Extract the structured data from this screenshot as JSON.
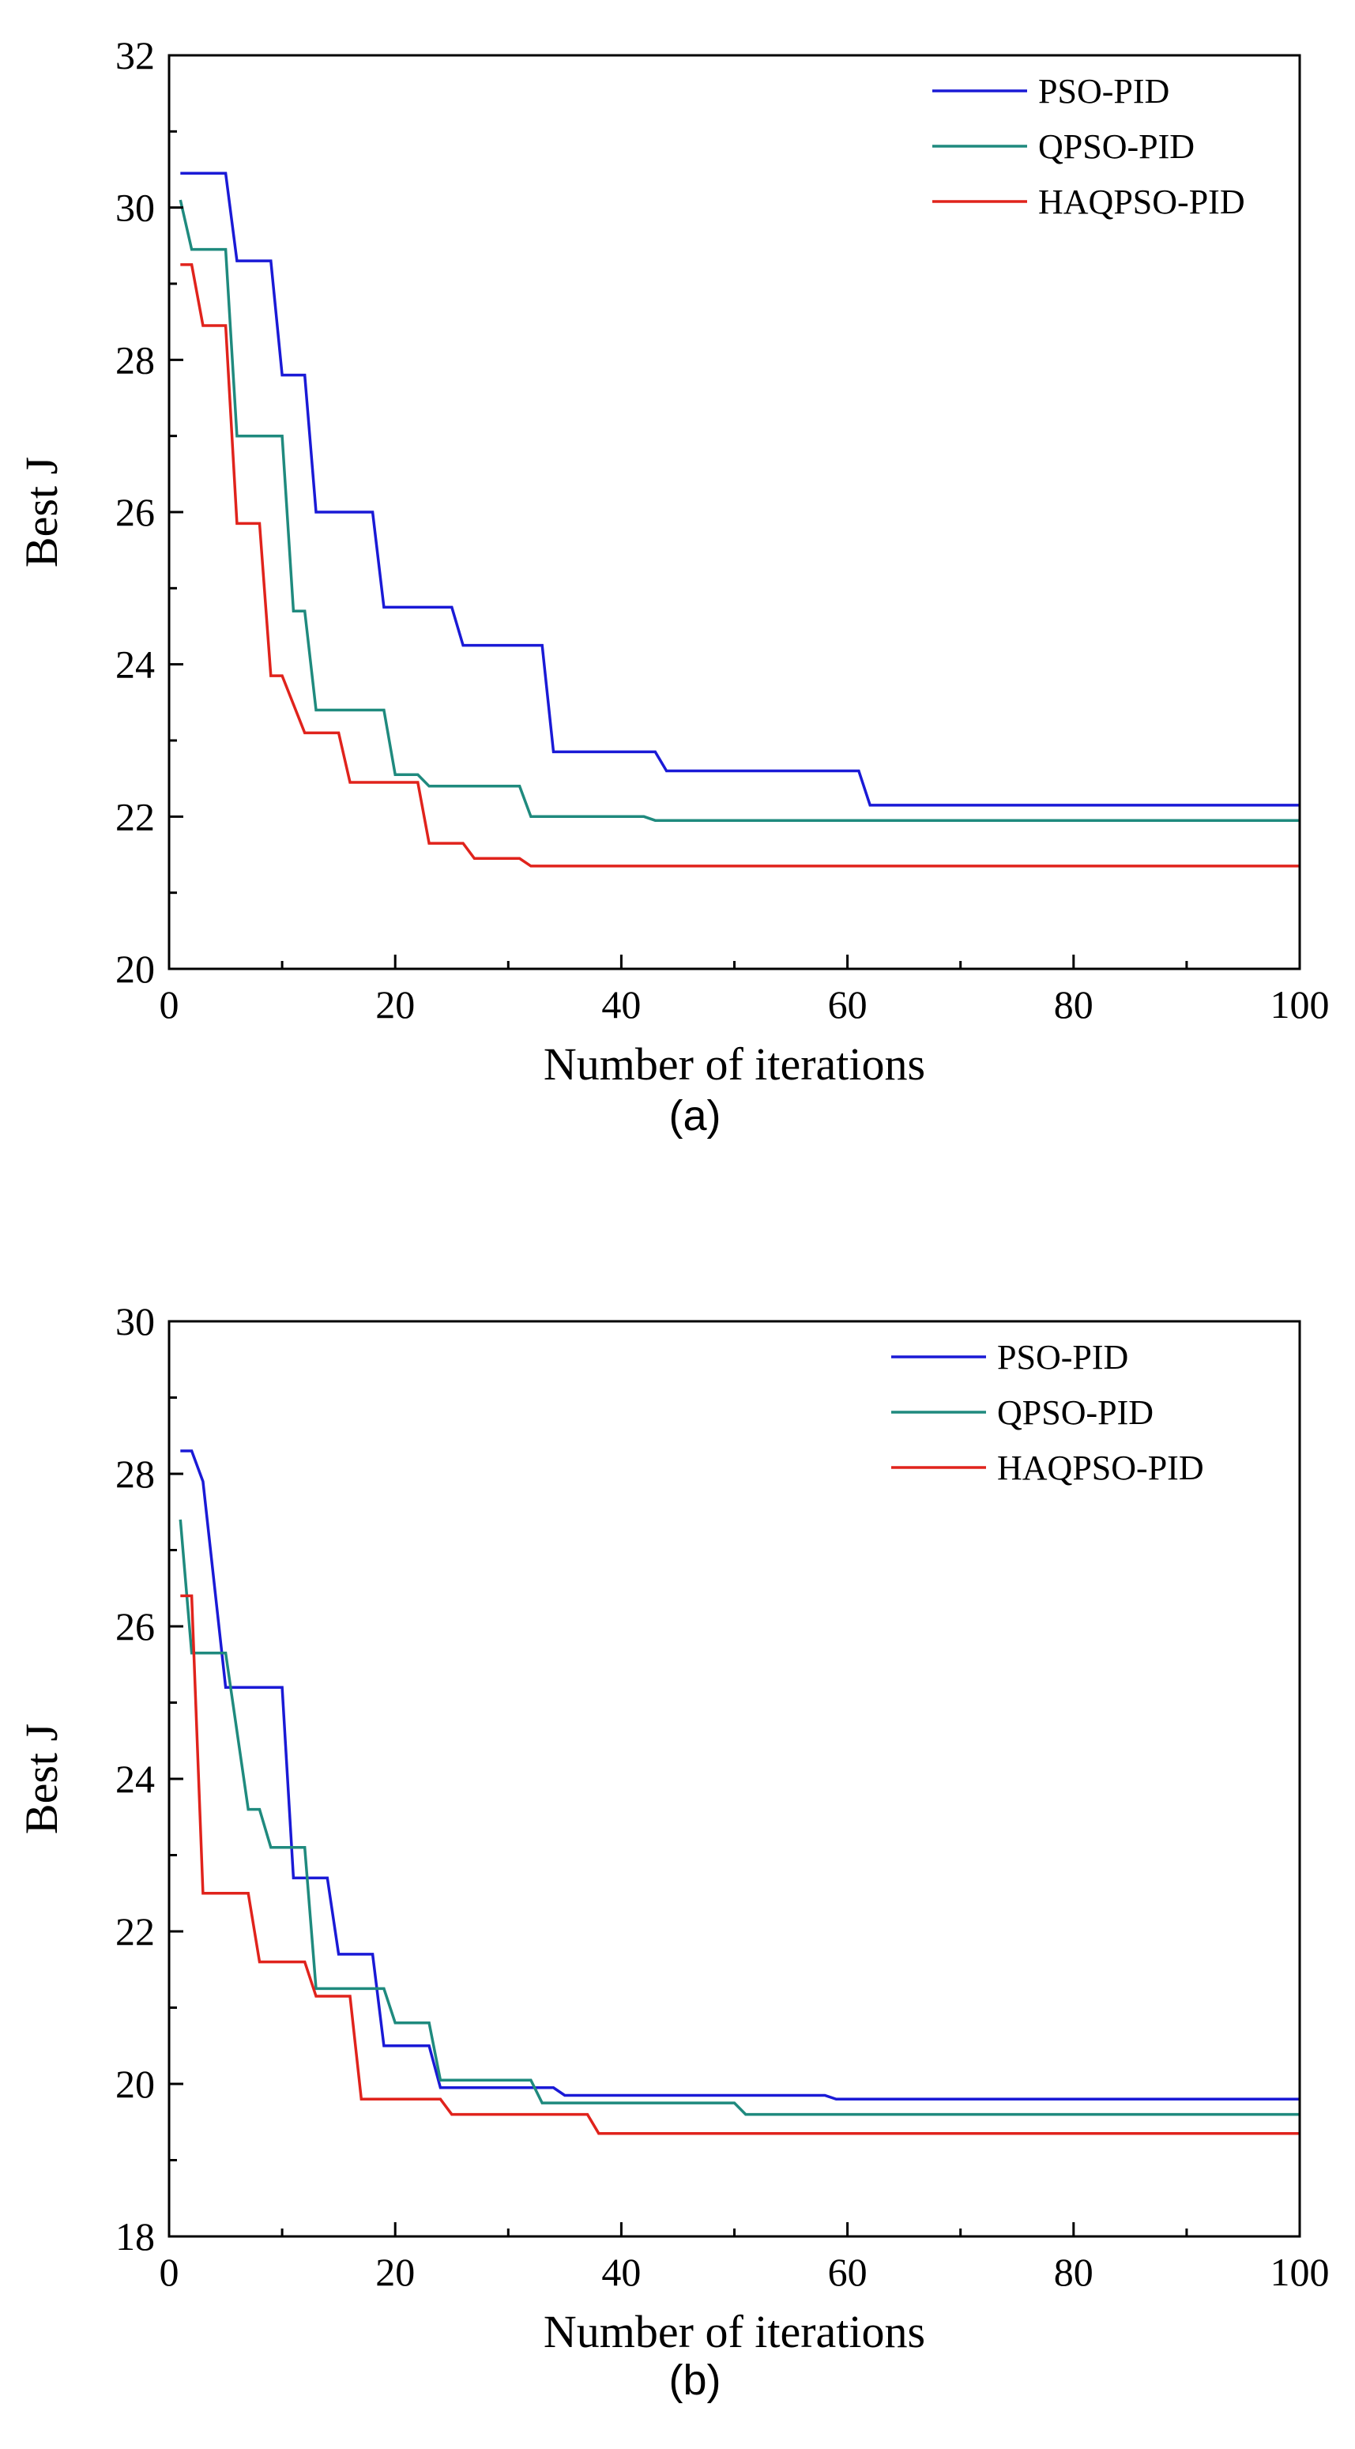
{
  "chart_data": [
    {
      "type": "line",
      "panel_label": "(a)",
      "title": "",
      "xlabel": "Number of iterations",
      "ylabel": "Best J",
      "xlim": [
        0,
        100
      ],
      "ylim": [
        20,
        32
      ],
      "xticks": [
        0,
        20,
        40,
        60,
        80,
        100
      ],
      "yticks": [
        20,
        22,
        24,
        26,
        28,
        30,
        32
      ],
      "grid": false,
      "legend_position": "top-right",
      "series": [
        {
          "name": "PSO-PID",
          "color": "#1a1ad6",
          "points": [
            [
              1,
              30.45
            ],
            [
              5,
              30.45
            ],
            [
              6,
              29.3
            ],
            [
              9,
              29.3
            ],
            [
              10,
              27.8
            ],
            [
              12,
              27.8
            ],
            [
              13,
              26.0
            ],
            [
              18,
              26.0
            ],
            [
              19,
              24.75
            ],
            [
              25,
              24.75
            ],
            [
              26,
              24.25
            ],
            [
              33,
              24.25
            ],
            [
              34,
              22.85
            ],
            [
              43,
              22.85
            ],
            [
              44,
              22.6
            ],
            [
              61,
              22.6
            ],
            [
              62,
              22.15
            ],
            [
              100,
              22.15
            ]
          ]
        },
        {
          "name": "QPSO-PID",
          "color": "#1f8a7e",
          "points": [
            [
              1,
              30.1
            ],
            [
              2,
              29.45
            ],
            [
              5,
              29.45
            ],
            [
              6,
              27.0
            ],
            [
              10,
              27.0
            ],
            [
              11,
              24.7
            ],
            [
              12,
              24.7
            ],
            [
              13,
              23.4
            ],
            [
              19,
              23.4
            ],
            [
              20,
              22.55
            ],
            [
              22,
              22.55
            ],
            [
              23,
              22.4
            ],
            [
              31,
              22.4
            ],
            [
              32,
              22.0
            ],
            [
              42,
              22.0
            ],
            [
              43,
              21.95
            ],
            [
              100,
              21.95
            ]
          ]
        },
        {
          "name": "HAQPSO-PID",
          "color": "#e0231c",
          "points": [
            [
              1,
              29.25
            ],
            [
              2,
              29.25
            ],
            [
              3,
              28.45
            ],
            [
              5,
              28.45
            ],
            [
              6,
              25.85
            ],
            [
              8,
              25.85
            ],
            [
              9,
              23.85
            ],
            [
              10,
              23.85
            ],
            [
              12,
              23.1
            ],
            [
              15,
              23.1
            ],
            [
              16,
              22.45
            ],
            [
              22,
              22.45
            ],
            [
              23,
              21.65
            ],
            [
              26,
              21.65
            ],
            [
              27,
              21.45
            ],
            [
              31,
              21.45
            ],
            [
              32,
              21.35
            ],
            [
              100,
              21.35
            ]
          ]
        }
      ]
    },
    {
      "type": "line",
      "panel_label": "(b)",
      "title": "",
      "xlabel": "Number of iterations",
      "ylabel": "Best J",
      "xlim": [
        0,
        100
      ],
      "ylim": [
        18,
        30
      ],
      "xticks": [
        0,
        20,
        40,
        60,
        80,
        100
      ],
      "yticks": [
        18,
        20,
        22,
        24,
        26,
        28,
        30
      ],
      "grid": false,
      "legend_position": "top-right",
      "series": [
        {
          "name": "PSO-PID",
          "color": "#1a1ad6",
          "points": [
            [
              1,
              28.3
            ],
            [
              2,
              28.3
            ],
            [
              3,
              27.9
            ],
            [
              5,
              25.2
            ],
            [
              10,
              25.2
            ],
            [
              11,
              22.7
            ],
            [
              14,
              22.7
            ],
            [
              15,
              21.7
            ],
            [
              18,
              21.7
            ],
            [
              19,
              20.5
            ],
            [
              23,
              20.5
            ],
            [
              24,
              19.95
            ],
            [
              34,
              19.95
            ],
            [
              35,
              19.85
            ],
            [
              58,
              19.85
            ],
            [
              59,
              19.8
            ],
            [
              100,
              19.8
            ]
          ]
        },
        {
          "name": "QPSO-PID",
          "color": "#1f8a7e",
          "points": [
            [
              1,
              27.4
            ],
            [
              2,
              25.65
            ],
            [
              5,
              25.65
            ],
            [
              7,
              23.6
            ],
            [
              8,
              23.6
            ],
            [
              9,
              23.1
            ],
            [
              12,
              23.1
            ],
            [
              13,
              21.25
            ],
            [
              19,
              21.25
            ],
            [
              20,
              20.8
            ],
            [
              23,
              20.8
            ],
            [
              24,
              20.05
            ],
            [
              32,
              20.05
            ],
            [
              33,
              19.75
            ],
            [
              50,
              19.75
            ],
            [
              51,
              19.6
            ],
            [
              100,
              19.6
            ]
          ]
        },
        {
          "name": "HAQPSO-PID",
          "color": "#e0231c",
          "points": [
            [
              1,
              26.4
            ],
            [
              2,
              26.4
            ],
            [
              3,
              22.5
            ],
            [
              7,
              22.5
            ],
            [
              8,
              21.6
            ],
            [
              12,
              21.6
            ],
            [
              13,
              21.15
            ],
            [
              16,
              21.15
            ],
            [
              17,
              19.8
            ],
            [
              24,
              19.8
            ],
            [
              25,
              19.6
            ],
            [
              37,
              19.6
            ],
            [
              38,
              19.35
            ],
            [
              100,
              19.35
            ]
          ]
        }
      ]
    }
  ]
}
